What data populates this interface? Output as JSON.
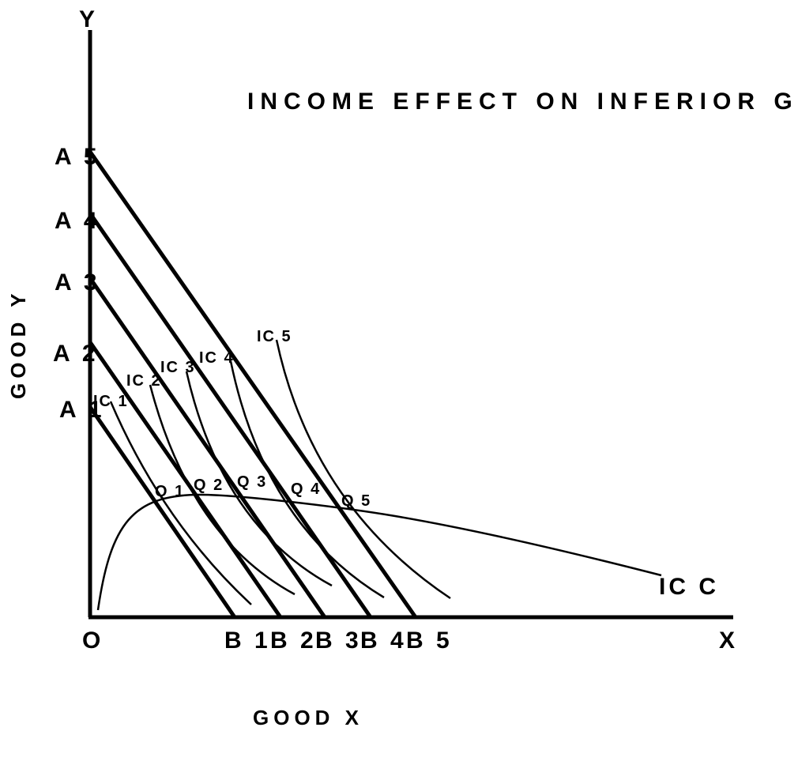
{
  "title": "INCOME EFFECT ON INFERIOR GOOD-Y",
  "axis_y_letter": "Y",
  "axis_x_letter": "X",
  "origin": "O",
  "ylabel": "GOOD Y",
  "xlabel": "GOOD X",
  "budget_lines": [
    {
      "a": "A 1",
      "b": "B 1"
    },
    {
      "a": "A 2",
      "b": "B 2"
    },
    {
      "a": "A 3",
      "b": "B 3"
    },
    {
      "a": "A 4",
      "b": "B 4"
    },
    {
      "a": "A 5",
      "b": "B 5"
    }
  ],
  "indifference_curves": [
    "IC 1",
    "IC 2",
    "IC 3",
    "IC 4",
    "IC 5"
  ],
  "equilibrium_points": [
    "Q 1",
    "Q 2",
    "Q 3",
    "Q 4",
    "Q 5"
  ],
  "curve_label": "IC C"
}
